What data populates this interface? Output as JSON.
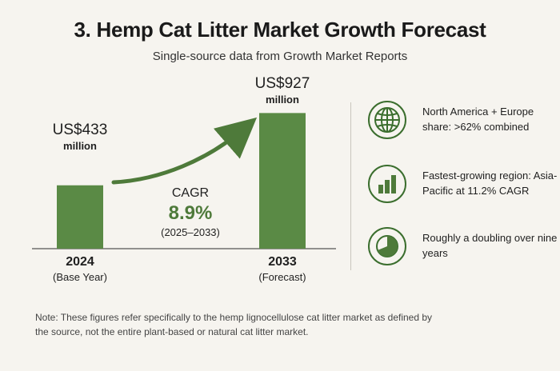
{
  "title": "3. Hemp Cat Litter Market Growth Forecast",
  "subtitle": "Single-source data from Growth Market Reports",
  "chart_data": {
    "type": "bar",
    "title": "3. Hemp Cat Litter Market Growth Forecast",
    "categories": [
      "2024",
      "2033"
    ],
    "category_sublabels": [
      "(Base Year)",
      "(Forecast)"
    ],
    "values": [
      433,
      927
    ],
    "value_labels": [
      "US$433",
      "US$927"
    ],
    "value_unit": "million",
    "bar_color": "#5a8a45",
    "ylim": [
      0,
      1000
    ],
    "grid": false,
    "annotation": {
      "label": "CAGR",
      "value": "8.9%",
      "range": "(2025–2033)",
      "color": "#4e7a3a"
    }
  },
  "side_items": [
    {
      "icon": "globe-icon",
      "text": "North America + Europe share: >62% combined"
    },
    {
      "icon": "bar-chart-icon",
      "text": "Fastest-growing region: Asia-Pacific at 11.2% CAGR"
    },
    {
      "icon": "pie-chart-icon",
      "text": "Roughly a doubling over nine years"
    }
  ],
  "note": "Note: These figures refer specifically to the hemp lignocellulose cat litter market as defined by the source, not the entire plant-based or natural cat litter market.",
  "colors": {
    "accent": "#3b6e2e",
    "bar": "#5a8a45",
    "background": "#f6f4ef"
  }
}
